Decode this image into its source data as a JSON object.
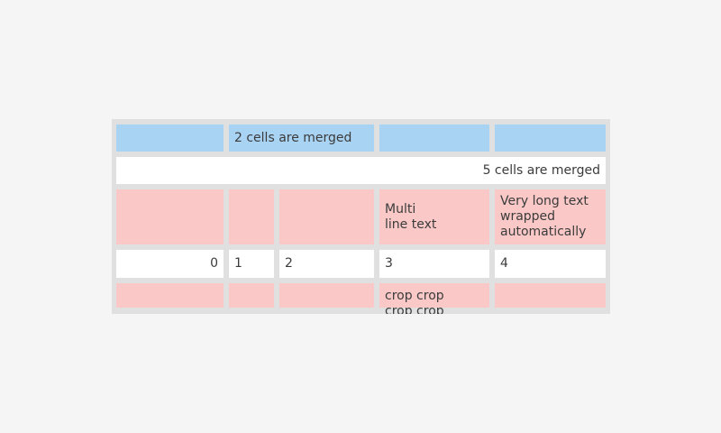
{
  "window": {
    "background_color": "#f5f5f5"
  },
  "table": {
    "grid_color": "#e0e0e0",
    "text_color": "#3b3b3b",
    "cell_colors": {
      "blue": "#a9d3f3",
      "white": "#ffffff",
      "pink": "#fac9c7"
    },
    "rows": [
      {
        "cells": [
          {
            "text": ""
          },
          {
            "text": "2 cells are merged",
            "colspan": 2
          },
          {
            "text": ""
          },
          {
            "text": ""
          }
        ]
      },
      {
        "cells": [
          {
            "text": "5 cells are merged",
            "colspan": 5
          }
        ]
      },
      {
        "cells": [
          {
            "text": ""
          },
          {
            "text": ""
          },
          {
            "text": ""
          },
          {
            "text": "Multi\nline text"
          },
          {
            "text": "Very long text wrapped automatically"
          }
        ]
      },
      {
        "cells": [
          {
            "text": "0"
          },
          {
            "text": "1"
          },
          {
            "text": "2"
          },
          {
            "text": "3"
          },
          {
            "text": "4"
          }
        ]
      },
      {
        "cells": [
          {
            "text": ""
          },
          {
            "text": ""
          },
          {
            "text": ""
          },
          {
            "text": "crop crop crop crop"
          },
          {
            "text": ""
          }
        ]
      }
    ]
  }
}
